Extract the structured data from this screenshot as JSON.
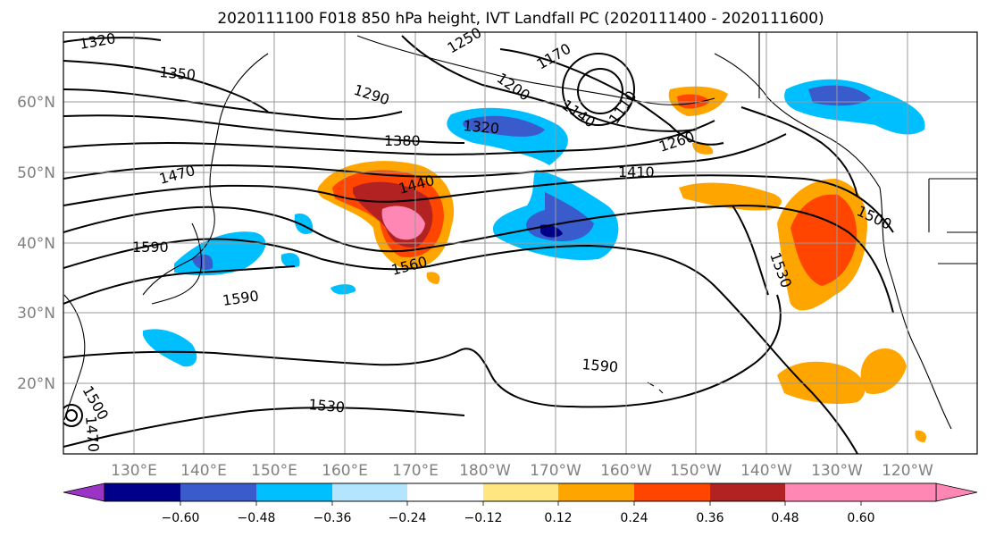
{
  "figure": {
    "title": "2020111100 F018 850 hPa height, IVT Landfall PC (2020111400 - 2020111600)"
  },
  "map": {
    "lat_labels": [
      "60°N",
      "50°N",
      "40°N",
      "30°N",
      "20°N"
    ],
    "lon_labels": [
      "130°E",
      "140°E",
      "150°E",
      "160°E",
      "170°E",
      "180°W",
      "170°W",
      "160°W",
      "150°W",
      "140°W",
      "130°W",
      "120°W"
    ],
    "contour_labels": [
      "1320",
      "1350",
      "1290",
      "1250",
      "1200",
      "1170",
      "1140",
      "1110",
      "1260",
      "1320",
      "1380",
      "1410",
      "1440",
      "1470",
      "1500",
      "1530",
      "1560",
      "1590",
      "1590",
      "1590",
      "1530",
      "1500",
      "1470"
    ]
  },
  "colorbar": {
    "ticks": [
      "−0.60",
      "−0.48",
      "−0.36",
      "−0.24",
      "−0.12",
      "0.12",
      "0.24",
      "0.36",
      "0.48",
      "0.60"
    ],
    "colors": [
      "#9b34c6",
      "#00008b",
      "#3a5bcc",
      "#00bfff",
      "#b3e5ff",
      "#ffffff",
      "#ffe680",
      "#ffa500",
      "#ff4500",
      "#b22222",
      "#ff87b4"
    ]
  },
  "chart_data": {
    "type": "heatmap",
    "title": "2020111100 F018 850 hPa height, IVT Landfall PC (2020111400 - 2020111600)",
    "projection": "lat-lon",
    "lon_range": [
      "120°E",
      "115°W"
    ],
    "lat_range": [
      "10°N",
      "70°N"
    ],
    "grid": true,
    "fields": [
      {
        "name": "850 hPa height",
        "style": "black contours",
        "levels_labeled": [
          1110,
          1140,
          1170,
          1200,
          1250,
          1260,
          1290,
          1320,
          1350,
          1380,
          1410,
          1440,
          1470,
          1500,
          1530,
          1560,
          1590
        ]
      },
      {
        "name": "IVT Landfall PC",
        "style": "filled contours",
        "levels": [
          -0.6,
          -0.48,
          -0.36,
          -0.24,
          -0.12,
          0.12,
          0.24,
          0.36,
          0.48,
          0.6
        ]
      }
    ]
  }
}
